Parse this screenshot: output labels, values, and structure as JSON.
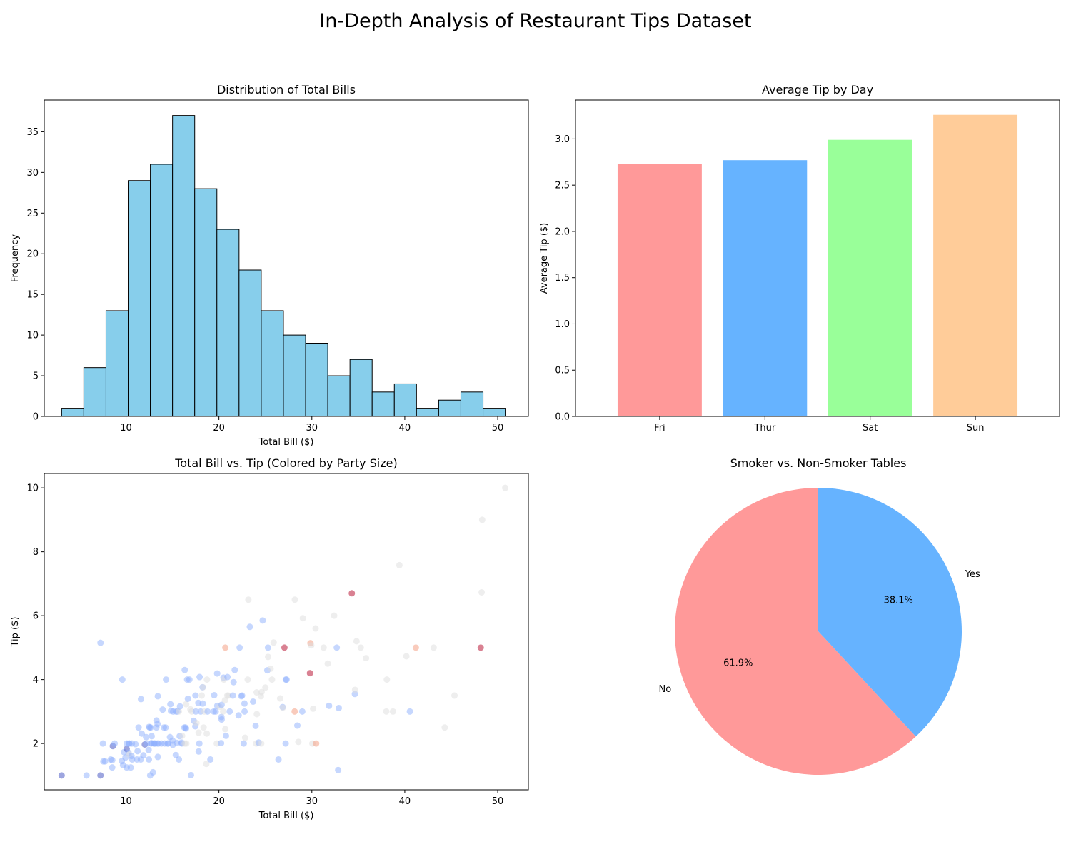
{
  "figure_title": "In-Depth Analysis of Restaurant Tips Dataset",
  "chart_data": [
    {
      "type": "bar",
      "subtype": "histogram",
      "title": "Distribution of Total Bills",
      "xlabel": "Total Bill ($)",
      "ylabel": "Frequency",
      "bin_start": 3.07,
      "bin_width": 2.387,
      "counts": [
        1,
        6,
        13,
        29,
        31,
        37,
        28,
        23,
        18,
        13,
        10,
        9,
        5,
        7,
        3,
        4,
        1,
        2,
        3,
        1
      ],
      "xlim": [
        1.2,
        53.3
      ],
      "ylim": [
        0,
        38.9
      ],
      "xticks": [
        10,
        20,
        30,
        40,
        50
      ],
      "yticks": [
        0,
        5,
        10,
        15,
        20,
        25,
        30,
        35
      ],
      "color": "#87ceeb",
      "edge_color": "#000000",
      "grid": false
    },
    {
      "type": "bar",
      "title": "Average Tip by Day",
      "xlabel": "",
      "ylabel": "Average Tip ($)",
      "categories": [
        "Fri",
        "Thur",
        "Sat",
        "Sun"
      ],
      "values": [
        2.73,
        2.77,
        2.99,
        3.26
      ],
      "colors": [
        "#ff9999",
        "#66b3ff",
        "#99ff99",
        "#ffcc99"
      ],
      "ylim": [
        0,
        3.42
      ],
      "yticks": [
        0.0,
        0.5,
        1.0,
        1.5,
        2.0,
        2.5,
        3.0
      ],
      "ytick_labels": [
        "0.0",
        "0.5",
        "1.0",
        "1.5",
        "2.0",
        "2.5",
        "3.0"
      ],
      "grid": false
    },
    {
      "type": "scatter",
      "title": "Total Bill vs. Tip (Colored by Party Size)",
      "xlabel": "Total Bill ($)",
      "ylabel": "Tip ($)",
      "xlim": [
        1.2,
        53.3
      ],
      "ylim": [
        0.55,
        10.45
      ],
      "xticks": [
        10,
        20,
        30,
        40,
        50
      ],
      "yticks": [
        2,
        4,
        6,
        8,
        10
      ],
      "colormap": "coolwarm",
      "size_range": [
        1,
        6
      ],
      "size_colors": [
        "#3b4cc0",
        "#8db0fe",
        "#dddddd",
        "#f4987a",
        "#b40426"
      ],
      "alpha": 0.5,
      "points": [
        [
          3.07,
          1.0,
          1
        ],
        [
          5.75,
          1.0,
          2
        ],
        [
          7.25,
          1.0,
          1
        ],
        [
          7.25,
          5.15,
          2
        ],
        [
          7.51,
          2.0,
          2
        ],
        [
          7.56,
          1.44,
          2
        ],
        [
          7.74,
          1.44,
          2
        ],
        [
          8.35,
          1.5,
          2
        ],
        [
          8.51,
          1.25,
          2
        ],
        [
          8.52,
          1.48,
          2
        ],
        [
          8.58,
          1.92,
          1
        ],
        [
          8.77,
          2.0,
          2
        ],
        [
          9.55,
          1.45,
          2
        ],
        [
          9.6,
          4.0,
          2
        ],
        [
          9.68,
          1.32,
          2
        ],
        [
          9.78,
          1.73,
          2
        ],
        [
          9.94,
          1.56,
          2
        ],
        [
          10.07,
          1.25,
          2
        ],
        [
          10.07,
          1.83,
          1
        ],
        [
          10.09,
          2.0,
          2
        ],
        [
          10.27,
          1.71,
          2
        ],
        [
          10.33,
          2.0,
          2
        ],
        [
          10.34,
          1.66,
          3
        ],
        [
          10.34,
          2.0,
          2
        ],
        [
          10.51,
          1.25,
          2
        ],
        [
          10.59,
          1.61,
          2
        ],
        [
          10.63,
          2.0,
          2
        ],
        [
          10.65,
          1.5,
          2
        ],
        [
          11.02,
          1.98,
          2
        ],
        [
          11.17,
          1.5,
          2
        ],
        [
          11.24,
          1.76,
          2
        ],
        [
          11.35,
          2.5,
          2
        ],
        [
          11.59,
          1.5,
          2
        ],
        [
          11.61,
          3.39,
          2
        ],
        [
          11.69,
          2.31,
          2
        ],
        [
          11.87,
          1.63,
          2
        ],
        [
          12.02,
          1.97,
          1
        ],
        [
          12.16,
          2.2,
          2
        ],
        [
          12.26,
          2.0,
          2
        ],
        [
          12.43,
          1.8,
          2
        ],
        [
          12.46,
          1.5,
          2
        ],
        [
          12.48,
          2.52,
          2
        ],
        [
          12.54,
          2.5,
          2
        ],
        [
          12.6,
          1.0,
          2
        ],
        [
          12.66,
          2.5,
          2
        ],
        [
          12.69,
          2.0,
          2
        ],
        [
          12.74,
          2.01,
          2
        ],
        [
          12.76,
          2.23,
          2
        ],
        [
          12.9,
          1.1,
          2
        ],
        [
          13.0,
          2.0,
          2
        ],
        [
          13.03,
          2.0,
          2
        ],
        [
          13.13,
          2.0,
          2
        ],
        [
          13.27,
          2.5,
          2
        ],
        [
          13.28,
          2.72,
          2
        ],
        [
          13.37,
          2.0,
          2
        ],
        [
          13.39,
          2.61,
          2
        ],
        [
          13.42,
          1.58,
          2
        ],
        [
          13.42,
          3.48,
          2
        ],
        [
          13.51,
          2.0,
          2
        ],
        [
          13.81,
          2.0,
          2
        ],
        [
          13.94,
          3.06,
          2
        ],
        [
          14.07,
          2.5,
          2
        ],
        [
          14.15,
          2.0,
          2
        ],
        [
          14.26,
          2.5,
          2
        ],
        [
          14.31,
          4.0,
          2
        ],
        [
          14.48,
          2.0,
          2
        ],
        [
          14.52,
          2.0,
          2
        ],
        [
          14.73,
          2.2,
          2
        ],
        [
          14.78,
          3.23,
          2
        ],
        [
          14.83,
          3.02,
          2
        ],
        [
          15.01,
          2.09,
          2
        ],
        [
          15.04,
          1.96,
          2
        ],
        [
          15.06,
          3.0,
          2
        ],
        [
          15.36,
          1.64,
          2
        ],
        [
          15.38,
          3.0,
          2
        ],
        [
          15.48,
          2.02,
          2
        ],
        [
          15.53,
          3.0,
          2
        ],
        [
          15.69,
          1.5,
          2
        ],
        [
          15.69,
          3.0,
          3
        ],
        [
          15.77,
          2.23,
          2
        ],
        [
          15.81,
          3.16,
          2
        ],
        [
          15.98,
          2.03,
          2
        ],
        [
          16.0,
          2.0,
          2
        ],
        [
          16.04,
          2.24,
          3
        ],
        [
          16.27,
          2.5,
          2
        ],
        [
          16.31,
          2.0,
          3
        ],
        [
          16.32,
          4.3,
          2
        ],
        [
          16.4,
          2.5,
          2
        ],
        [
          16.45,
          2.47,
          2
        ],
        [
          16.47,
          3.23,
          3
        ],
        [
          16.49,
          2.0,
          4
        ],
        [
          16.58,
          4.0,
          2
        ],
        [
          16.66,
          3.4,
          2
        ],
        [
          16.82,
          4.0,
          2
        ],
        [
          16.93,
          3.07,
          3
        ],
        [
          16.99,
          1.01,
          2
        ],
        [
          17.07,
          3.0,
          3
        ],
        [
          17.29,
          2.71,
          2
        ],
        [
          17.46,
          2.54,
          2
        ],
        [
          17.47,
          3.5,
          2
        ],
        [
          17.51,
          3.0,
          2
        ],
        [
          17.59,
          2.64,
          3
        ],
        [
          17.78,
          3.27,
          2
        ],
        [
          17.81,
          2.34,
          4
        ],
        [
          17.82,
          1.75,
          2
        ],
        [
          17.89,
          2.0,
          2
        ],
        [
          17.92,
          4.08,
          2
        ],
        [
          18.04,
          3.0,
          2
        ],
        [
          18.15,
          3.5,
          3
        ],
        [
          18.24,
          3.76,
          2
        ],
        [
          18.26,
          3.25,
          2
        ],
        [
          18.29,
          3.76,
          4
        ],
        [
          18.35,
          2.5,
          4
        ],
        [
          18.43,
          3.0,
          4
        ],
        [
          18.64,
          1.36,
          3
        ],
        [
          18.69,
          2.31,
          3
        ],
        [
          18.71,
          4.0,
          3
        ],
        [
          18.78,
          3.0,
          2
        ],
        [
          19.08,
          1.5,
          2
        ],
        [
          19.44,
          3.0,
          2
        ],
        [
          19.49,
          3.51,
          2
        ],
        [
          19.65,
          3.0,
          2
        ],
        [
          19.77,
          2.0,
          4
        ],
        [
          19.81,
          4.19,
          2
        ],
        [
          19.82,
          3.18,
          2
        ],
        [
          20.08,
          3.15,
          3
        ],
        [
          20.23,
          2.01,
          2
        ],
        [
          20.27,
          2.83,
          2
        ],
        [
          20.29,
          2.75,
          2
        ],
        [
          20.29,
          3.21,
          2
        ],
        [
          20.45,
          3.0,
          4
        ],
        [
          20.49,
          4.06,
          2
        ],
        [
          20.53,
          4.0,
          4
        ],
        [
          20.65,
          3.35,
          3
        ],
        [
          20.69,
          2.45,
          4
        ],
        [
          20.69,
          5.0,
          5
        ],
        [
          20.76,
          2.24,
          2
        ],
        [
          20.9,
          3.5,
          3
        ],
        [
          20.92,
          4.08,
          2
        ],
        [
          21.01,
          3.5,
          3
        ],
        [
          21.16,
          3.0,
          2
        ],
        [
          21.5,
          3.5,
          2
        ],
        [
          21.58,
          3.92,
          2
        ],
        [
          21.7,
          4.3,
          2
        ],
        [
          22.12,
          2.88,
          2
        ],
        [
          22.23,
          5.0,
          2
        ],
        [
          22.42,
          3.48,
          2
        ],
        [
          22.49,
          3.5,
          2
        ],
        [
          22.67,
          2.0,
          2
        ],
        [
          22.75,
          3.25,
          2
        ],
        [
          22.76,
          3.0,
          2
        ],
        [
          22.82,
          2.18,
          3
        ],
        [
          23.1,
          4.0,
          3
        ],
        [
          23.17,
          6.5,
          4
        ],
        [
          23.33,
          5.65,
          2
        ],
        [
          23.68,
          3.31,
          2
        ],
        [
          23.95,
          2.55,
          2
        ],
        [
          24.01,
          2.0,
          4
        ],
        [
          24.06,
          3.6,
          3
        ],
        [
          24.08,
          2.92,
          4
        ],
        [
          24.27,
          2.03,
          2
        ],
        [
          24.52,
          3.48,
          3
        ],
        [
          24.55,
          2.0,
          4
        ],
        [
          24.59,
          3.61,
          4
        ],
        [
          24.71,
          5.85,
          2
        ],
        [
          25.0,
          3.75,
          4
        ],
        [
          25.21,
          4.29,
          2
        ],
        [
          25.28,
          5.0,
          2
        ],
        [
          25.29,
          4.71,
          4
        ],
        [
          25.56,
          4.34,
          4
        ],
        [
          25.71,
          4.0,
          3
        ],
        [
          25.89,
          5.16,
          4
        ],
        [
          26.41,
          1.5,
          2
        ],
        [
          26.59,
          3.41,
          3
        ],
        [
          26.86,
          3.14,
          2
        ],
        [
          26.88,
          3.12,
          4
        ],
        [
          27.05,
          5.0,
          6
        ],
        [
          27.18,
          2.0,
          2
        ],
        [
          27.2,
          4.0,
          2
        ],
        [
          27.28,
          4.0,
          2
        ],
        [
          28.15,
          3.0,
          5
        ],
        [
          28.17,
          6.5,
          3
        ],
        [
          28.44,
          2.56,
          2
        ],
        [
          28.55,
          2.05,
          3
        ],
        [
          28.97,
          3.0,
          2
        ],
        [
          29.03,
          5.92,
          3
        ],
        [
          29.8,
          4.2,
          6
        ],
        [
          29.85,
          5.14,
          5
        ],
        [
          29.93,
          5.07,
          4
        ],
        [
          30.06,
          2.0,
          3
        ],
        [
          30.14,
          3.09,
          4
        ],
        [
          30.4,
          5.6,
          4
        ],
        [
          30.46,
          2.0,
          5
        ],
        [
          31.27,
          5.0,
          3
        ],
        [
          31.71,
          4.5,
          4
        ],
        [
          31.85,
          3.18,
          2
        ],
        [
          32.4,
          6.0,
          4
        ],
        [
          32.68,
          5.0,
          2
        ],
        [
          32.83,
          1.17,
          2
        ],
        [
          32.9,
          3.11,
          2
        ],
        [
          34.3,
          6.7,
          6
        ],
        [
          34.63,
          3.55,
          2
        ],
        [
          34.65,
          3.68,
          4
        ],
        [
          34.81,
          5.2,
          4
        ],
        [
          35.26,
          5.0,
          4
        ],
        [
          35.83,
          4.67,
          3
        ],
        [
          38.01,
          3.0,
          4
        ],
        [
          38.07,
          4.0,
          3
        ],
        [
          38.73,
          3.0,
          4
        ],
        [
          39.42,
          7.58,
          4
        ],
        [
          40.17,
          4.73,
          4
        ],
        [
          40.55,
          3.0,
          2
        ],
        [
          41.19,
          5.0,
          5
        ],
        [
          43.11,
          5.0,
          4
        ],
        [
          44.3,
          2.5,
          3
        ],
        [
          45.35,
          3.5,
          3
        ],
        [
          48.17,
          5.0,
          6
        ],
        [
          48.27,
          6.73,
          4
        ],
        [
          48.33,
          9.0,
          4
        ],
        [
          50.81,
          10.0,
          3
        ]
      ],
      "grid": false
    },
    {
      "type": "pie",
      "title": "Smoker vs. Non-Smoker Tables",
      "labels": [
        "No",
        "Yes"
      ],
      "values": [
        61.9,
        38.1
      ],
      "pct_labels": [
        "61.9%",
        "38.1%"
      ],
      "colors": [
        "#ff9999",
        "#66b3ff"
      ],
      "start_angle": 90,
      "direction": "counterclockwise"
    }
  ]
}
